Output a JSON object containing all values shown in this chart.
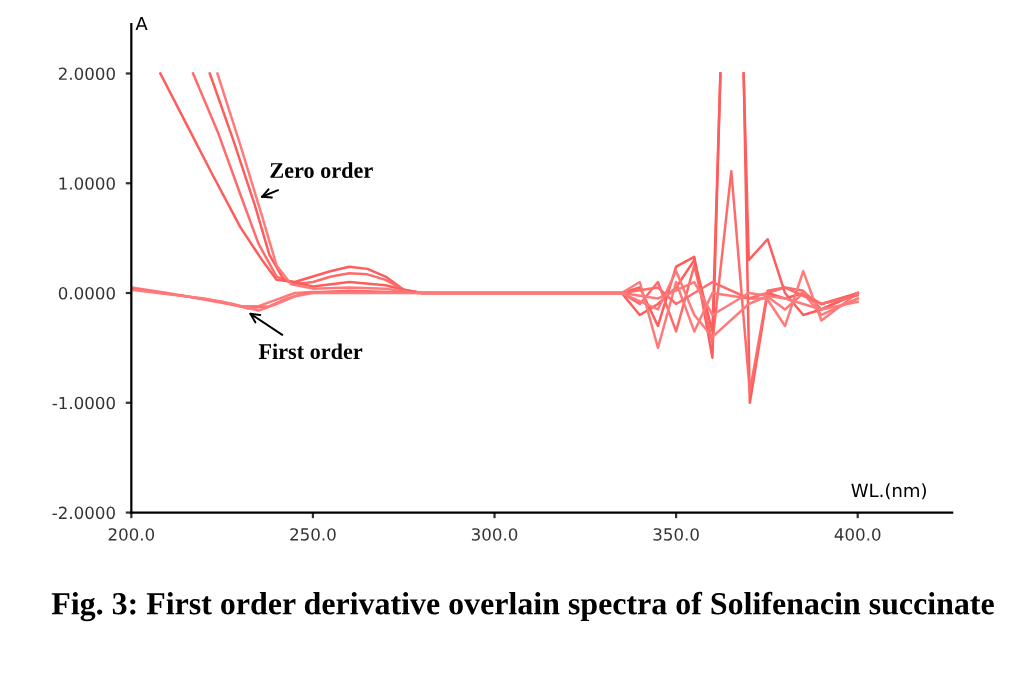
{
  "chart_data": {
    "type": "line",
    "title": "Fig. 3: First order derivative overlain spectra of Solifenacin succinate",
    "xlabel": "WL.(nm)",
    "ylabel": "A",
    "xlim": [
      200,
      426
    ],
    "ylim": [
      -2,
      2.45
    ],
    "xticks": [
      {
        "value": 200,
        "label": "200.0"
      },
      {
        "value": 250,
        "label": "250.0"
      },
      {
        "value": 300,
        "label": "300.0"
      },
      {
        "value": 350,
        "label": "350.0"
      },
      {
        "value": 400,
        "label": "400.0"
      }
    ],
    "yticks": [
      {
        "value": -2,
        "label": "-2.0000"
      },
      {
        "value": -1,
        "label": "-1.0000"
      },
      {
        "value": 0,
        "label": "0.0000"
      },
      {
        "value": 1,
        "label": "1.0000"
      },
      {
        "value": 2,
        "label": "2.0000"
      }
    ],
    "grid": false,
    "line_style": "solid",
    "annotations": [
      {
        "text": "Zero order",
        "x": 234,
        "y": 0.85
      },
      {
        "text": "First order",
        "x": 231,
        "y": -0.15
      }
    ],
    "series": [
      {
        "color": "#ff5c5c",
        "x": [
          208,
          215,
          222,
          230,
          236,
          240,
          245,
          250,
          255,
          260,
          265,
          270,
          275,
          280,
          300,
          335,
          340,
          345,
          350,
          355,
          360,
          362.2,
          364,
          368.6,
          370.3,
          375.2,
          380,
          385,
          390,
          400
        ],
        "values": [
          2.0,
          1.55,
          1.1,
          0.6,
          0.3,
          0.12,
          0.1,
          0.15,
          0.2,
          0.24,
          0.22,
          0.15,
          0.03,
          0,
          0,
          0,
          0.05,
          -0.3,
          0.24,
          0.33,
          -0.59,
          2.0,
          null,
          2.0,
          -1.0,
          0.0,
          -0.05,
          0.0,
          -0.1,
          0
        ]
      },
      {
        "color": "#ff6b6b",
        "x": [
          217,
          224,
          230,
          235,
          240,
          245,
          250,
          255,
          260,
          265,
          270,
          275,
          280,
          300,
          335,
          340,
          345,
          350,
          355,
          360,
          365.2,
          370.3,
          375.2,
          380,
          385,
          390,
          400
        ],
        "values": [
          2.0,
          1.45,
          0.9,
          0.45,
          0.15,
          0.08,
          0.1,
          0.15,
          0.18,
          0.17,
          0.12,
          0.03,
          0,
          0,
          0,
          -0.1,
          0.1,
          -0.35,
          0.25,
          -0.45,
          1.11,
          -0.9,
          0.02,
          0.05,
          0.02,
          -0.15,
          0
        ]
      },
      {
        "color": "#ff5c5c",
        "x": [
          221.6,
          228,
          234,
          238,
          242,
          250,
          260,
          270,
          276,
          280,
          335,
          340,
          345,
          350,
          355,
          360,
          362.2,
          364,
          368.6,
          370,
          375.2,
          380,
          385,
          390,
          400
        ],
        "values": [
          2.0,
          1.4,
          0.8,
          0.35,
          0.12,
          0.06,
          0.1,
          0.07,
          0.02,
          0,
          0,
          -0.2,
          -0.1,
          0.05,
          0.3,
          -0.35,
          2.0,
          null,
          2.0,
          0.3,
          0.49,
          0.0,
          -0.2,
          -0.15,
          0
        ]
      },
      {
        "color": "#ff7a7a",
        "x": [
          223.7,
          230,
          236,
          240,
          244,
          250,
          260,
          270,
          276,
          280,
          335,
          340,
          345,
          350,
          355,
          360,
          370,
          375,
          380,
          385,
          390,
          400
        ],
        "values": [
          2.0,
          1.35,
          0.7,
          0.25,
          0.08,
          0.04,
          0.05,
          0.04,
          0.01,
          0,
          0,
          0.1,
          -0.5,
          0.1,
          -0.35,
          0.0,
          -0.05,
          -0.05,
          -0.3,
          0.2,
          -0.25,
          0
        ]
      },
      {
        "color": "#ff7a7a",
        "x": [
          200,
          210,
          220,
          230,
          235,
          240,
          245,
          250,
          260,
          280,
          335,
          345,
          350,
          355,
          360,
          370,
          375,
          380,
          385,
          390,
          400
        ],
        "values": [
          0.05,
          0.0,
          -0.06,
          -0.12,
          -0.12,
          -0.06,
          0.0,
          0.01,
          0.01,
          0,
          0,
          -0.15,
          0.2,
          -0.2,
          -0.4,
          -0.1,
          -0.03,
          -0.15,
          0.0,
          -0.2,
          -0.05
        ]
      },
      {
        "color": "#ff6b6b",
        "x": [
          200,
          215,
          225,
          232,
          238,
          243,
          248,
          260,
          280,
          335,
          345,
          350,
          360,
          370,
          380,
          390,
          400
        ],
        "values": [
          0.04,
          -0.03,
          -0.08,
          -0.14,
          -0.12,
          -0.05,
          0,
          0.02,
          0,
          0,
          0.05,
          -0.1,
          0.1,
          -0.05,
          0.05,
          -0.1,
          -0.02
        ]
      },
      {
        "color": "#ff7a7a",
        "x": [
          200,
          220,
          228,
          235,
          240,
          245,
          250,
          280,
          335,
          345,
          355,
          360,
          370,
          380,
          390,
          400
        ],
        "values": [
          0.03,
          -0.05,
          -0.1,
          -0.16,
          -0.1,
          -0.03,
          0.0,
          0,
          0,
          -0.05,
          0.1,
          -0.2,
          0.0,
          -0.05,
          -0.15,
          -0.08
        ]
      }
    ]
  }
}
